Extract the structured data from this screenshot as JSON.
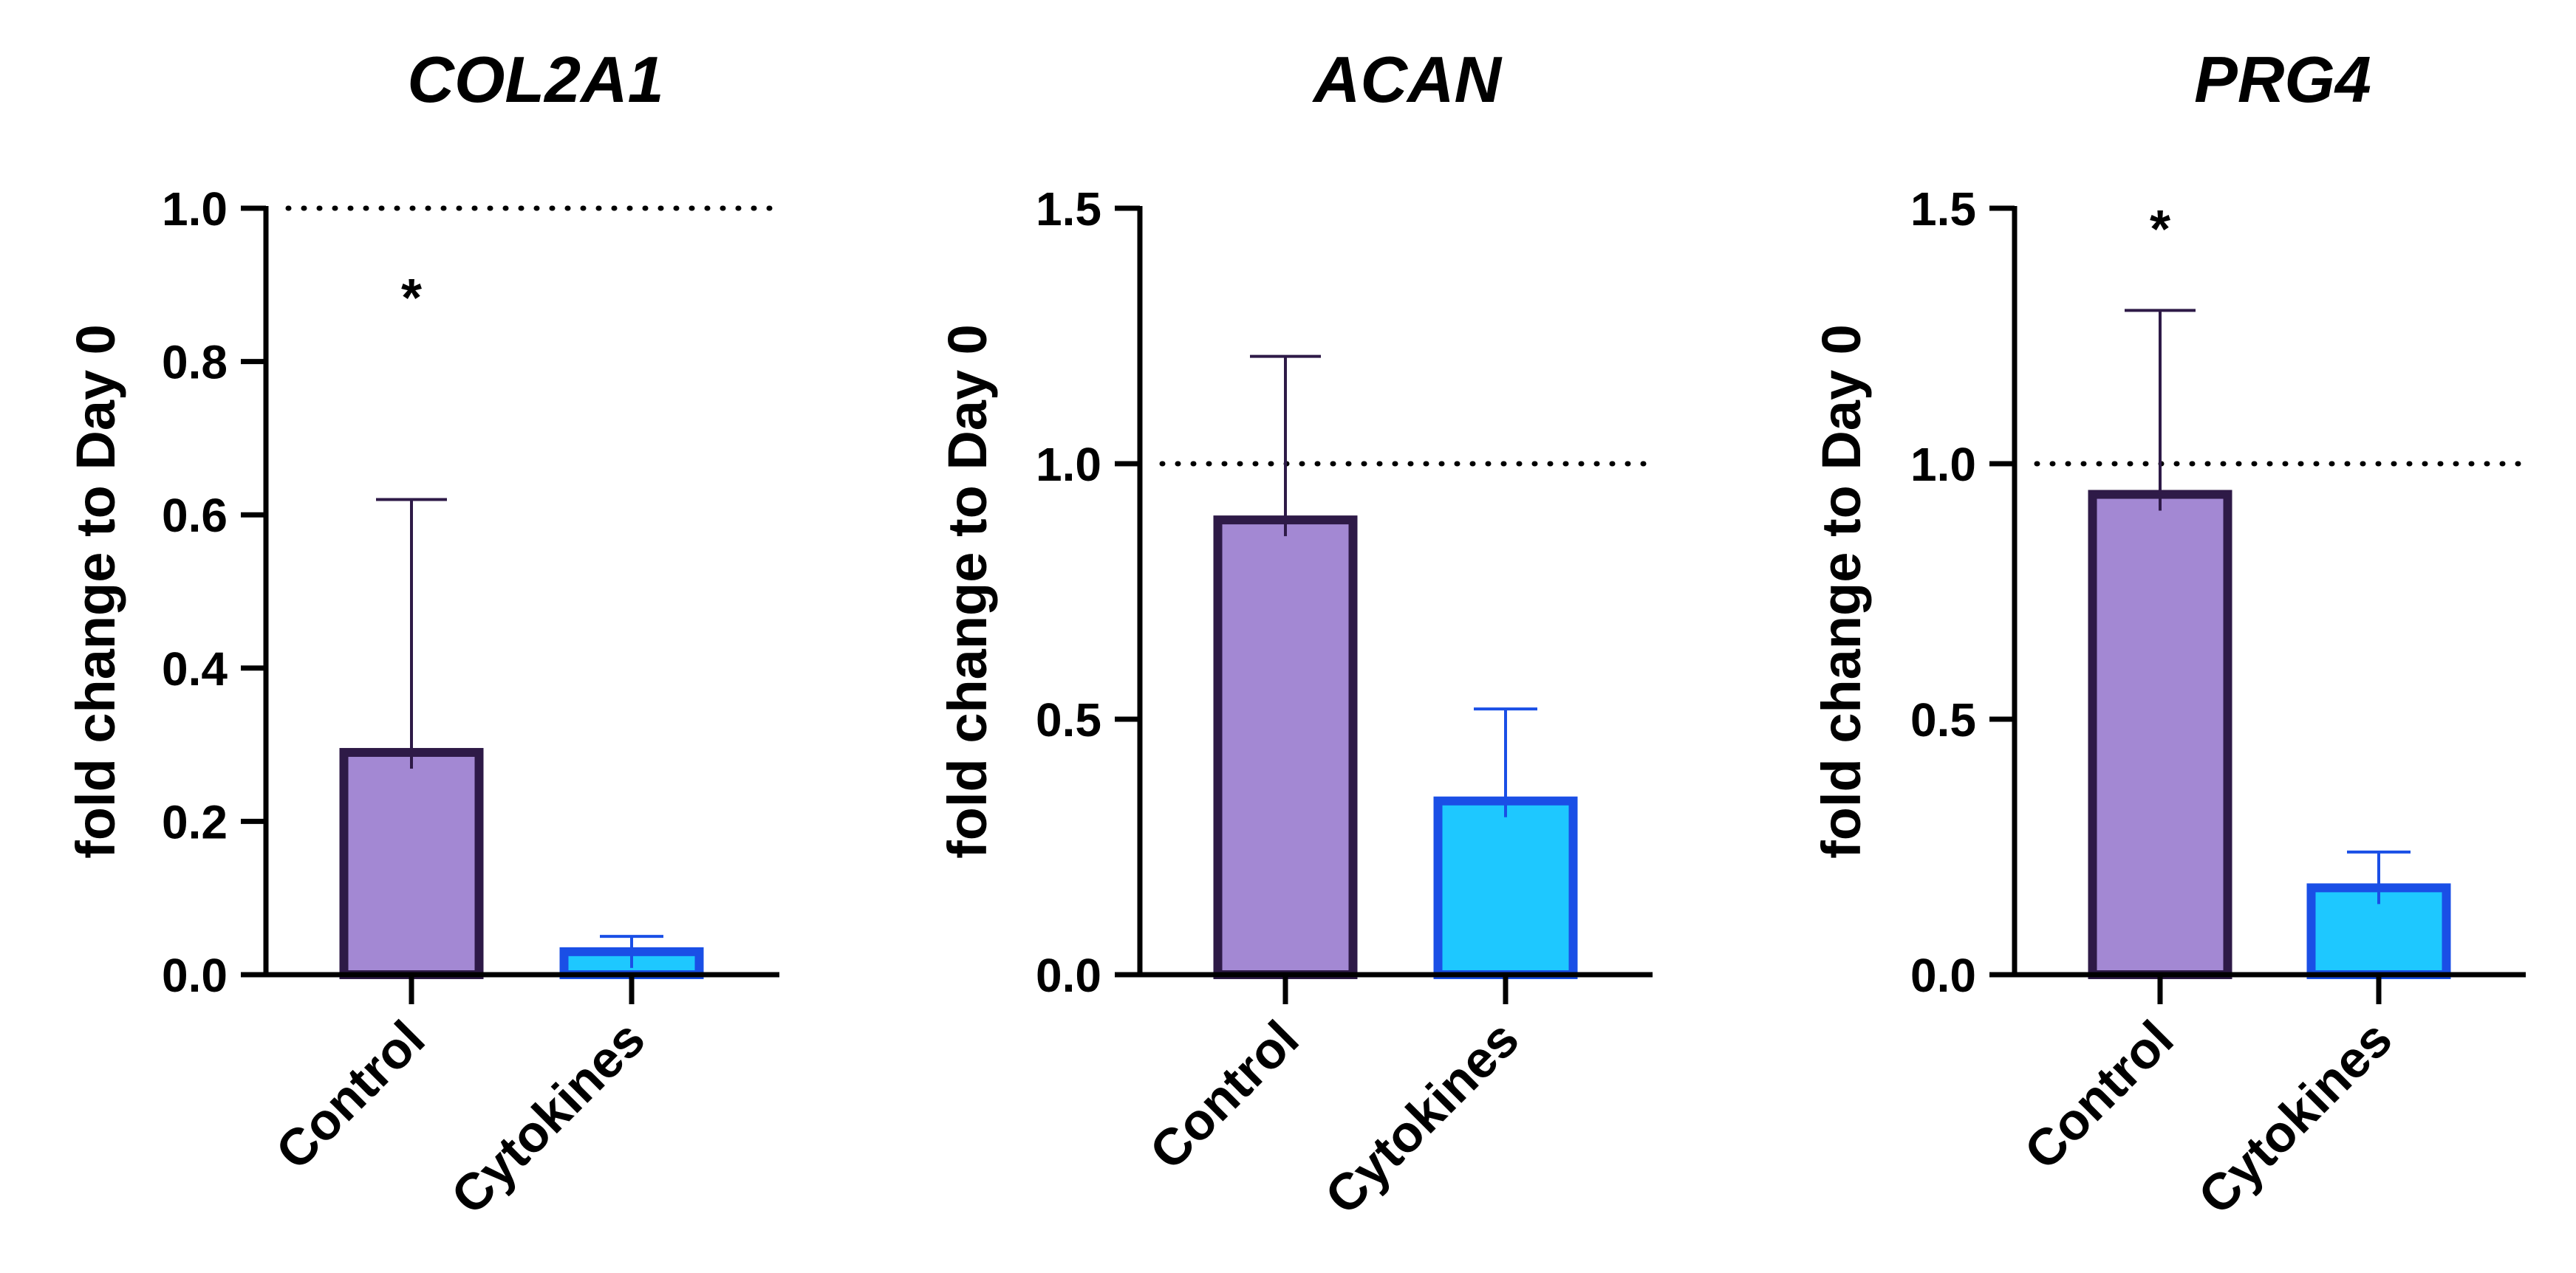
{
  "chart_data": [
    {
      "type": "bar",
      "title": "COL2A1",
      "ylabel": "fold change to Day 0",
      "xlabel": "",
      "categories": [
        "Control",
        "Cytokines"
      ],
      "values": [
        0.29,
        0.03
      ],
      "errors": [
        0.33,
        0.02
      ],
      "ylim": [
        0,
        1.0
      ],
      "yticks": [
        0.0,
        0.2,
        0.4,
        0.6,
        0.8,
        1.0
      ],
      "ytick_labels": [
        "0.0",
        "0.2",
        "0.4",
        "0.6",
        "0.8",
        "1.0"
      ],
      "reference_line": 1.0,
      "annotations": [
        {
          "category": "Control",
          "text": "*",
          "y": 0.89
        }
      ]
    },
    {
      "type": "bar",
      "title": "ACAN",
      "ylabel": "fold change to Day 0",
      "xlabel": "",
      "categories": [
        "Control",
        "Cytokines"
      ],
      "values": [
        0.89,
        0.34
      ],
      "errors": [
        0.32,
        0.18
      ],
      "ylim": [
        0,
        1.5
      ],
      "yticks": [
        0.0,
        0.5,
        1.0,
        1.5
      ],
      "ytick_labels": [
        "0.0",
        "0.5",
        "1.0",
        "1.5"
      ],
      "reference_line": 1.0,
      "annotations": []
    },
    {
      "type": "bar",
      "title": "PRG4",
      "ylabel": "fold change to Day 0",
      "xlabel": "",
      "categories": [
        "Control",
        "Cytokines"
      ],
      "values": [
        0.94,
        0.17
      ],
      "errors": [
        0.36,
        0.07
      ],
      "ylim": [
        0,
        1.5
      ],
      "yticks": [
        0.0,
        0.5,
        1.0,
        1.5
      ],
      "ytick_labels": [
        "0.0",
        "0.5",
        "1.0",
        "1.5"
      ],
      "reference_line": 1.0,
      "annotations": [
        {
          "category": "Control",
          "text": "*",
          "y": 1.47
        }
      ]
    }
  ],
  "colors": {
    "control_fill": "#A388D3",
    "control_edge": "#2E1A47",
    "cytokines_fill": "#1EC8FF",
    "cytokines_edge": "#1A4FE6",
    "axis": "#000000"
  }
}
